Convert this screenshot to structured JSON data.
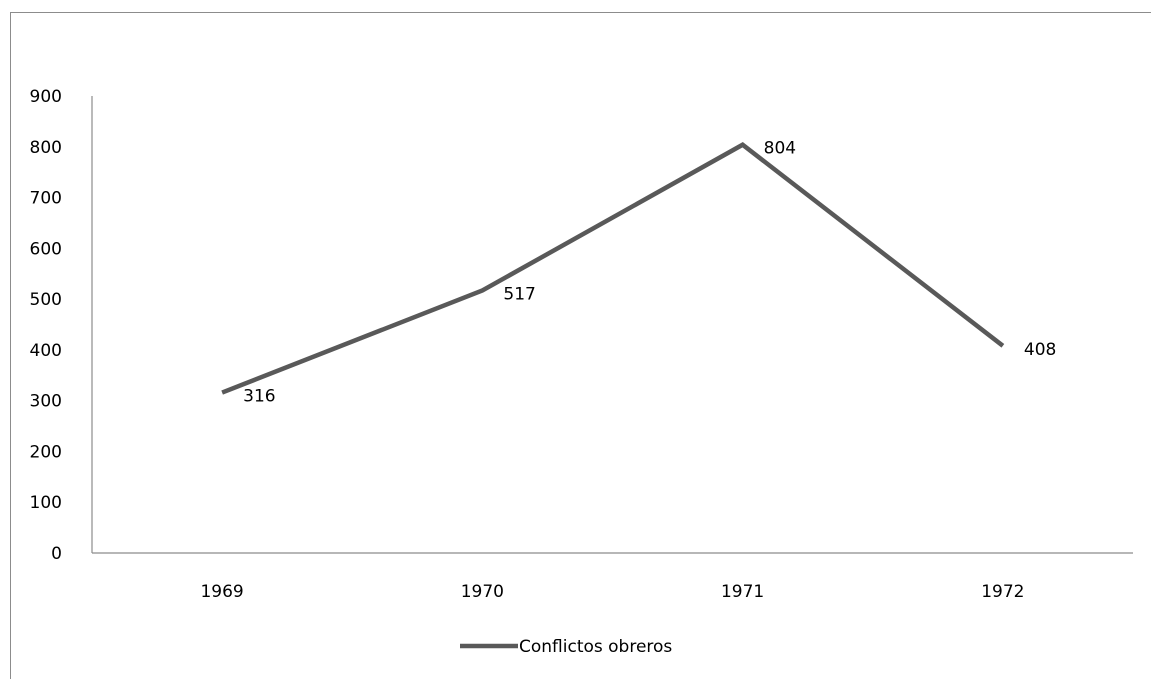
{
  "chart_data": {
    "type": "line",
    "categories": [
      "1969",
      "1970",
      "1971",
      "1972"
    ],
    "series": [
      {
        "name": "Conflictos obreros",
        "values": [
          316,
          517,
          804,
          408
        ],
        "color": "#595959"
      }
    ],
    "ylim": [
      0,
      900
    ],
    "yticks": [
      0,
      100,
      200,
      300,
      400,
      500,
      600,
      700,
      800,
      900
    ],
    "data_labels": [
      "316",
      "517",
      "804",
      "408"
    ],
    "grid": false,
    "legend_position": "bottom",
    "title": "",
    "xlabel": "",
    "ylabel": ""
  }
}
